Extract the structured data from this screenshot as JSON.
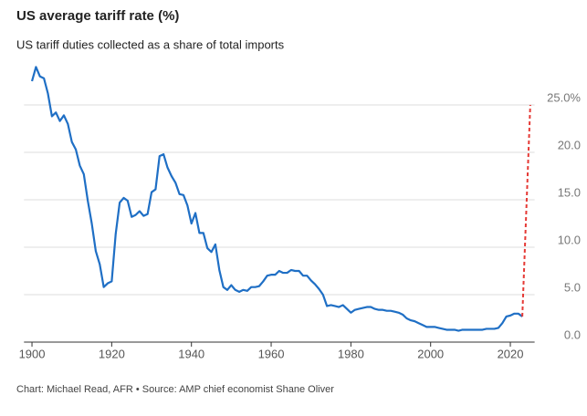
{
  "chart_data": {
    "type": "line",
    "title": "US average tariff rate (%)",
    "subtitle": "US tariff duties collected as a share of total imports",
    "source": "Chart: Michael Read, AFR • Source: AMP chief economist Shane Oliver",
    "xlim": [
      1898,
      2027
    ],
    "xticks": [
      1900,
      1920,
      1940,
      1960,
      1980,
      2000,
      2020
    ],
    "ylim": [
      0,
      30
    ],
    "yticks": [
      {
        "value": 0,
        "label": "0.0"
      },
      {
        "value": 5,
        "label": "5.0"
      },
      {
        "value": 10,
        "label": "10.0"
      },
      {
        "value": 15,
        "label": "15.0"
      },
      {
        "value": 20,
        "label": "20.0"
      },
      {
        "value": 25,
        "label": "25.0%"
      }
    ],
    "grid": true,
    "series": [
      {
        "color": "#1f6fc5",
        "dashed": false,
        "x": [
          1900,
          1901,
          1902,
          1903,
          1904,
          1905,
          1906,
          1907,
          1908,
          1909,
          1910,
          1911,
          1912,
          1913,
          1914,
          1915,
          1916,
          1917,
          1918,
          1919,
          1920,
          1921,
          1922,
          1923,
          1924,
          1925,
          1926,
          1927,
          1928,
          1929,
          1930,
          1931,
          1932,
          1933,
          1934,
          1935,
          1936,
          1937,
          1938,
          1939,
          1940,
          1941,
          1942,
          1943,
          1944,
          1945,
          1946,
          1947,
          1948,
          1949,
          1950,
          1951,
          1952,
          1953,
          1954,
          1955,
          1956,
          1957,
          1958,
          1959,
          1960,
          1961,
          1962,
          1963,
          1964,
          1965,
          1966,
          1967,
          1968,
          1969,
          1970,
          1971,
          1972,
          1973,
          1974,
          1975,
          1976,
          1977,
          1978,
          1979,
          1980,
          1981,
          1982,
          1983,
          1984,
          1985,
          1986,
          1987,
          1988,
          1989,
          1990,
          1991,
          1992,
          1993,
          1994,
          1995,
          1996,
          1997,
          1998,
          1999,
          2000,
          2001,
          2002,
          2003,
          2004,
          2005,
          2006,
          2007,
          2008,
          2009,
          2010,
          2011,
          2012,
          2013,
          2014,
          2015,
          2016,
          2017,
          2018,
          2019,
          2020,
          2021,
          2022,
          2023
        ],
        "values": [
          27.5,
          29.0,
          28.0,
          27.8,
          26.2,
          23.8,
          24.2,
          23.3,
          23.9,
          23.0,
          21.1,
          20.3,
          18.6,
          17.7,
          14.9,
          12.5,
          9.6,
          8.2,
          5.8,
          6.2,
          6.4,
          11.4,
          14.7,
          15.2,
          14.9,
          13.2,
          13.4,
          13.8,
          13.3,
          13.5,
          15.8,
          16.1,
          19.6,
          19.8,
          18.4,
          17.5,
          16.8,
          15.6,
          15.5,
          14.4,
          12.5,
          13.6,
          11.5,
          11.5,
          9.9,
          9.5,
          10.3,
          7.6,
          5.8,
          5.5,
          6.0,
          5.5,
          5.3,
          5.5,
          5.4,
          5.8,
          5.8,
          5.9,
          6.4,
          7.0,
          7.1,
          7.1,
          7.5,
          7.3,
          7.3,
          7.6,
          7.5,
          7.5,
          7.0,
          7.0,
          6.5,
          6.1,
          5.6,
          5.0,
          3.8,
          3.9,
          3.8,
          3.7,
          3.9,
          3.5,
          3.1,
          3.4,
          3.5,
          3.6,
          3.7,
          3.7,
          3.5,
          3.4,
          3.4,
          3.3,
          3.3,
          3.2,
          3.1,
          2.9,
          2.5,
          2.3,
          2.2,
          2.0,
          1.8,
          1.6,
          1.6,
          1.6,
          1.5,
          1.4,
          1.3,
          1.3,
          1.3,
          1.2,
          1.3,
          1.3,
          1.3,
          1.3,
          1.3,
          1.3,
          1.4,
          1.4,
          1.4,
          1.5,
          2.0,
          2.7,
          2.8,
          3.0,
          3.0,
          2.7
        ]
      },
      {
        "color": "#e53935",
        "dashed": true,
        "x": [
          2023,
          2025
        ],
        "values": [
          2.7,
          25.0
        ]
      }
    ]
  }
}
